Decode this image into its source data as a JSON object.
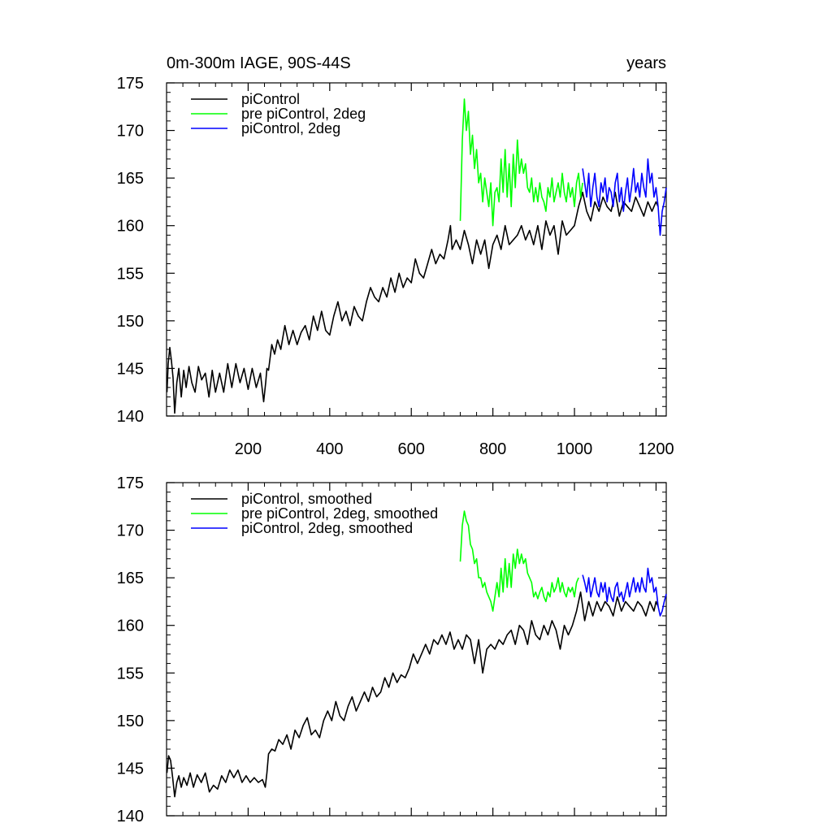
{
  "chart_data": [
    {
      "type": "line",
      "title": "0m-300m IAGE, 90S-44S",
      "right_title": "years",
      "xlim": [
        0,
        1225
      ],
      "ylim": [
        140,
        175
      ],
      "xticks": [
        200,
        400,
        600,
        800,
        1000,
        1200
      ],
      "xtick_labels": [
        "200",
        "400",
        "600",
        "800",
        "1000",
        "1200"
      ],
      "yticks": [
        140,
        145,
        150,
        155,
        160,
        165,
        170,
        175
      ],
      "ytick_labels": [
        "140",
        "145",
        "150",
        "155",
        "160",
        "165",
        "170",
        "175"
      ],
      "legend_position": "top-left",
      "series": [
        {
          "name": "piControl",
          "color": "#000000",
          "x": [
            1,
            4,
            8,
            12,
            16,
            20,
            25,
            30,
            36,
            42,
            48,
            55,
            62,
            70,
            78,
            86,
            95,
            104,
            112,
            120,
            130,
            140,
            150,
            160,
            170,
            180,
            190,
            200,
            210,
            220,
            230,
            238,
            243,
            246,
            250,
            258,
            265,
            272,
            280,
            290,
            300,
            310,
            320,
            330,
            340,
            350,
            360,
            370,
            380,
            390,
            400,
            410,
            420,
            430,
            440,
            450,
            460,
            470,
            480,
            490,
            500,
            510,
            520,
            530,
            540,
            550,
            560,
            570,
            580,
            590,
            600,
            610,
            620,
            630,
            640,
            650,
            660,
            670,
            680,
            690,
            696,
            700,
            710,
            720,
            730,
            740,
            750,
            760,
            770,
            780,
            790,
            800,
            810,
            820,
            830,
            840,
            850,
            860,
            870,
            880,
            890,
            900,
            910,
            920,
            930,
            940,
            950,
            960,
            970,
            980,
            990,
            1000,
            1010,
            1020,
            1030,
            1040,
            1050,
            1060,
            1070,
            1080,
            1090,
            1100,
            1110,
            1120,
            1130,
            1140,
            1150,
            1160,
            1170,
            1180,
            1190,
            1200,
            1205
          ],
          "values": [
            142.5,
            145.5,
            147.2,
            145.8,
            144.0,
            140.3,
            143.5,
            145.0,
            142.0,
            144.8,
            143.0,
            145.2,
            143.5,
            142.5,
            145.2,
            143.8,
            144.5,
            142.0,
            144.8,
            142.5,
            144.5,
            142.5,
            145.5,
            143.0,
            145.5,
            143.5,
            145.0,
            142.8,
            145.0,
            143.0,
            144.5,
            141.5,
            143.5,
            145.0,
            144.8,
            147.5,
            146.5,
            148.0,
            147.0,
            149.5,
            147.5,
            149.0,
            147.5,
            148.8,
            149.5,
            148.0,
            150.5,
            149.0,
            151.0,
            149.0,
            148.5,
            150.5,
            152.0,
            150.0,
            151.0,
            149.5,
            151.5,
            150.5,
            150.0,
            152.0,
            153.5,
            152.5,
            152.0,
            153.5,
            152.5,
            154.5,
            153.0,
            155.0,
            153.5,
            154.5,
            154.0,
            156.5,
            155.0,
            154.5,
            156.0,
            157.5,
            156.0,
            157.0,
            156.5,
            158.5,
            160.0,
            157.5,
            158.5,
            157.5,
            159.5,
            158.0,
            156.0,
            158.5,
            157.0,
            158.5,
            155.5,
            158.0,
            159.0,
            157.5,
            160.0,
            158.0,
            158.5,
            159.0,
            160.0,
            158.5,
            159.5,
            158.0,
            160.0,
            157.5,
            160.5,
            159.0,
            160.0,
            157.0,
            160.5,
            159.0,
            159.5,
            160.0,
            162.0,
            163.5,
            161.5,
            160.5,
            162.5,
            161.5,
            163.0,
            162.0,
            161.5,
            163.5,
            161.0,
            162.5,
            162.0,
            161.5,
            163.0,
            162.0,
            161.0,
            162.5,
            161.5,
            162.5,
            162.0
          ]
        },
        {
          "name": "pre piControl, 2deg",
          "color": "#00ff00",
          "x": [
            720,
            725,
            730,
            735,
            740,
            745,
            750,
            755,
            760,
            765,
            770,
            775,
            780,
            785,
            790,
            795,
            800,
            805,
            810,
            815,
            820,
            825,
            830,
            835,
            840,
            845,
            850,
            855,
            860,
            865,
            870,
            875,
            880,
            885,
            890,
            895,
            900,
            905,
            910,
            915,
            920,
            925,
            930,
            935,
            940,
            945,
            950,
            955,
            960,
            965,
            970,
            975,
            980,
            985,
            990,
            995,
            1000,
            1005,
            1010,
            1015,
            1020
          ],
          "values": [
            160.5,
            169.0,
            173.3,
            170.0,
            172.0,
            167.5,
            169.5,
            166.0,
            168.0,
            164.5,
            165.5,
            162.5,
            165.0,
            163.5,
            162.0,
            164.5,
            160.0,
            163.5,
            164.0,
            162.5,
            167.0,
            163.5,
            168.0,
            163.0,
            166.5,
            162.0,
            167.5,
            164.0,
            169.0,
            165.5,
            167.0,
            165.5,
            166.5,
            164.0,
            163.5,
            165.0,
            162.5,
            164.0,
            162.5,
            164.5,
            163.0,
            162.5,
            161.5,
            164.0,
            163.0,
            165.0,
            162.5,
            163.5,
            164.5,
            163.0,
            165.5,
            163.5,
            162.5,
            164.5,
            163.0,
            164.0,
            162.0,
            164.5,
            165.5,
            163.0,
            164.5
          ]
        },
        {
          "name": "piControl, 2deg",
          "color": "#0000ff",
          "x": [
            1020,
            1025,
            1030,
            1035,
            1040,
            1045,
            1050,
            1055,
            1060,
            1065,
            1070,
            1075,
            1080,
            1085,
            1090,
            1095,
            1100,
            1105,
            1110,
            1115,
            1120,
            1125,
            1130,
            1135,
            1140,
            1145,
            1150,
            1155,
            1160,
            1165,
            1170,
            1175,
            1180,
            1185,
            1190,
            1195,
            1200,
            1205,
            1210,
            1215,
            1220,
            1225
          ],
          "values": [
            166.0,
            164.5,
            163.0,
            165.5,
            162.0,
            164.0,
            165.5,
            163.0,
            162.0,
            164.5,
            163.5,
            165.0,
            162.5,
            164.0,
            163.5,
            162.0,
            164.5,
            165.5,
            162.5,
            164.0,
            161.5,
            163.5,
            165.0,
            162.5,
            164.0,
            166.0,
            163.5,
            164.5,
            163.0,
            165.5,
            164.0,
            163.0,
            167.0,
            164.5,
            165.5,
            163.0,
            164.0,
            162.0,
            159.0,
            161.5,
            162.5,
            164.0
          ]
        }
      ]
    },
    {
      "type": "line",
      "title": "",
      "xlim": [
        0,
        1225
      ],
      "ylim": [
        140,
        175
      ],
      "xticks": [
        200,
        400,
        600,
        800,
        1000,
        1200
      ],
      "yticks": [
        140,
        145,
        150,
        155,
        160,
        165,
        170,
        175
      ],
      "ytick_labels": [
        "140",
        "145",
        "150",
        "155",
        "160",
        "165",
        "170",
        "175"
      ],
      "legend_position": "top-left",
      "series": [
        {
          "name": "piControl, smoothed",
          "color": "#000000",
          "x": [
            1,
            5,
            10,
            15,
            20,
            25,
            30,
            36,
            42,
            50,
            58,
            66,
            75,
            85,
            95,
            105,
            115,
            125,
            135,
            145,
            155,
            165,
            175,
            185,
            195,
            205,
            215,
            225,
            235,
            242,
            246,
            250,
            258,
            266,
            275,
            285,
            295,
            305,
            315,
            325,
            335,
            345,
            355,
            365,
            375,
            385,
            395,
            405,
            415,
            425,
            435,
            445,
            455,
            465,
            475,
            485,
            495,
            505,
            515,
            525,
            535,
            545,
            555,
            565,
            575,
            585,
            595,
            605,
            615,
            625,
            635,
            645,
            655,
            665,
            675,
            685,
            695,
            705,
            715,
            725,
            735,
            745,
            755,
            765,
            775,
            785,
            795,
            805,
            815,
            825,
            835,
            845,
            855,
            865,
            875,
            885,
            895,
            905,
            915,
            925,
            935,
            945,
            955,
            965,
            975,
            985,
            995,
            1005,
            1015,
            1025,
            1035,
            1045,
            1055,
            1065,
            1075,
            1085,
            1095,
            1105,
            1115,
            1125,
            1135,
            1145,
            1155,
            1165,
            1175,
            1185,
            1195,
            1200,
            1205
          ],
          "values": [
            144.5,
            146.3,
            145.8,
            144.0,
            142.0,
            143.5,
            144.2,
            143.0,
            144.0,
            143.2,
            144.5,
            143.0,
            144.3,
            143.5,
            144.5,
            142.5,
            143.2,
            142.8,
            144.2,
            143.5,
            144.8,
            144.0,
            144.8,
            143.5,
            144.2,
            143.5,
            144.0,
            143.5,
            143.8,
            143.0,
            144.5,
            146.5,
            147.0,
            146.8,
            148.0,
            147.5,
            148.5,
            147.0,
            149.0,
            148.2,
            149.5,
            150.3,
            148.5,
            149.0,
            148.2,
            150.0,
            151.0,
            150.0,
            152.0,
            150.5,
            150.0,
            151.5,
            152.5,
            151.0,
            152.0,
            153.0,
            152.0,
            153.5,
            152.5,
            153.0,
            154.5,
            153.5,
            155.0,
            154.0,
            154.8,
            154.5,
            155.5,
            157.0,
            156.0,
            157.0,
            158.0,
            157.0,
            158.5,
            158.0,
            159.0,
            158.0,
            159.3,
            157.5,
            158.5,
            157.5,
            159.0,
            158.5,
            156.0,
            158.5,
            155.0,
            157.5,
            158.0,
            157.5,
            158.5,
            158.0,
            159.0,
            159.5,
            158.0,
            160.0,
            159.5,
            158.0,
            160.5,
            159.0,
            158.5,
            160.0,
            159.0,
            160.5,
            159.5,
            157.5,
            160.0,
            159.0,
            160.0,
            161.5,
            163.5,
            160.5,
            162.5,
            161.0,
            162.5,
            161.5,
            162.5,
            162.0,
            161.0,
            163.0,
            161.5,
            162.5,
            162.0,
            161.5,
            162.5,
            162.0,
            161.0,
            162.5,
            161.5,
            162.5,
            162.0
          ]
        },
        {
          "name": "pre piControl, 2deg, smoothed",
          "color": "#00ff00",
          "x": [
            720,
            725,
            730,
            735,
            740,
            745,
            750,
            755,
            760,
            765,
            770,
            775,
            780,
            785,
            790,
            795,
            800,
            805,
            810,
            815,
            820,
            825,
            830,
            835,
            840,
            845,
            850,
            855,
            860,
            865,
            870,
            875,
            880,
            885,
            890,
            895,
            900,
            905,
            910,
            915,
            920,
            925,
            930,
            935,
            940,
            945,
            950,
            955,
            960,
            965,
            970,
            975,
            980,
            985,
            990,
            995,
            1000,
            1005,
            1010
          ],
          "values": [
            166.7,
            170.5,
            172.0,
            171.0,
            170.5,
            168.5,
            168.0,
            166.5,
            167.0,
            165.0,
            165.0,
            164.0,
            164.5,
            163.5,
            163.0,
            162.5,
            161.5,
            163.0,
            164.5,
            163.0,
            166.0,
            163.5,
            167.0,
            164.0,
            166.5,
            164.0,
            167.5,
            166.0,
            168.0,
            166.5,
            167.5,
            166.5,
            167.0,
            165.5,
            165.0,
            164.5,
            163.0,
            163.5,
            162.8,
            163.5,
            164.0,
            163.0,
            162.5,
            163.5,
            163.0,
            164.5,
            163.5,
            164.0,
            165.0,
            163.5,
            164.5,
            163.5,
            163.0,
            164.0,
            163.5,
            164.0,
            163.0,
            164.5,
            165.0
          ]
        },
        {
          "name": "piControl, 2deg, smoothed",
          "color": "#0000ff",
          "x": [
            1020,
            1025,
            1030,
            1035,
            1040,
            1045,
            1050,
            1055,
            1060,
            1065,
            1070,
            1075,
            1080,
            1085,
            1090,
            1095,
            1100,
            1105,
            1110,
            1115,
            1120,
            1125,
            1130,
            1135,
            1140,
            1145,
            1150,
            1155,
            1160,
            1165,
            1170,
            1175,
            1180,
            1185,
            1190,
            1195,
            1200,
            1205,
            1210,
            1215,
            1220,
            1225
          ],
          "values": [
            165.3,
            164.5,
            163.5,
            165.0,
            163.0,
            164.0,
            165.0,
            163.5,
            163.0,
            164.5,
            163.5,
            164.5,
            162.5,
            164.0,
            163.0,
            162.5,
            164.0,
            164.5,
            163.0,
            163.5,
            162.5,
            163.5,
            164.5,
            163.0,
            164.0,
            165.0,
            163.5,
            164.5,
            163.5,
            165.0,
            164.0,
            163.5,
            166.0,
            164.5,
            165.0,
            163.5,
            164.0,
            162.0,
            161.0,
            161.5,
            162.5,
            163.3
          ]
        }
      ]
    }
  ]
}
